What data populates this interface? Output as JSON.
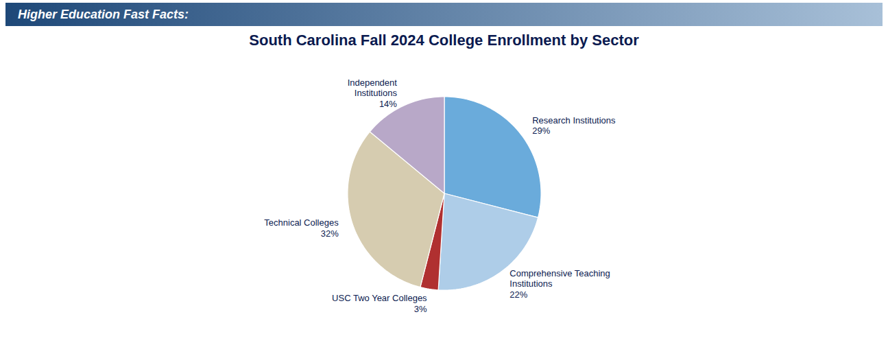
{
  "chart_data": {
    "type": "pie",
    "title": "South Carolina Fall 2024 College Enrollment by Sector",
    "subtitle": "Higher Education Fast Facts:",
    "categories": [
      "Research Institutions",
      "Comprehensive Teaching\nInstitutions",
      "USC Two Year Colleges",
      "Technical Colleges",
      "Independent\nInstitutions"
    ],
    "values": [
      29,
      22,
      3,
      32,
      14
    ],
    "value_labels": [
      "29%",
      "22%",
      "3%",
      "32%",
      "14%"
    ],
    "colors": [
      "#6aabdb",
      "#aecde8",
      "#b03030",
      "#d6ccb0",
      "#b8a8c8"
    ],
    "data_labels": true
  }
}
